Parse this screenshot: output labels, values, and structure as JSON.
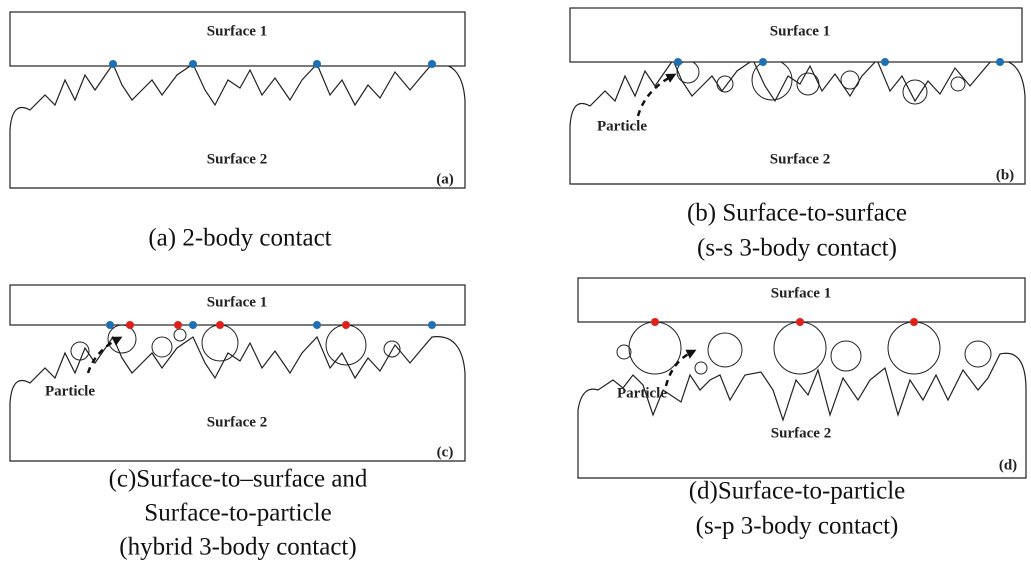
{
  "panels": [
    {
      "surface_top": "Surface 1",
      "surface_bottom": "Surface 2",
      "tag": "(a)",
      "caption": [
        "(a) 2-body contact"
      ]
    },
    {
      "surface_top": "Surface 1",
      "surface_bottom": "Surface 2",
      "tag": "(b)",
      "particle": "Particle",
      "caption": [
        "(b) Surface-to-surface",
        "(s-s 3-body contact)"
      ]
    },
    {
      "surface_top": "Surface 1",
      "surface_bottom": "Surface 2",
      "tag": "(c)",
      "particle": "Particle",
      "caption": [
        "(c)Surface-to–surface and",
        "Surface-to-particle",
        "(hybrid 3-body contact)"
      ]
    },
    {
      "surface_top": "Surface 1",
      "surface_bottom": "Surface 2",
      "tag": "(d)",
      "particle": "Particle",
      "caption": [
        "(d)Surface-to-particle",
        "(s-p 3-body contact)"
      ]
    }
  ]
}
